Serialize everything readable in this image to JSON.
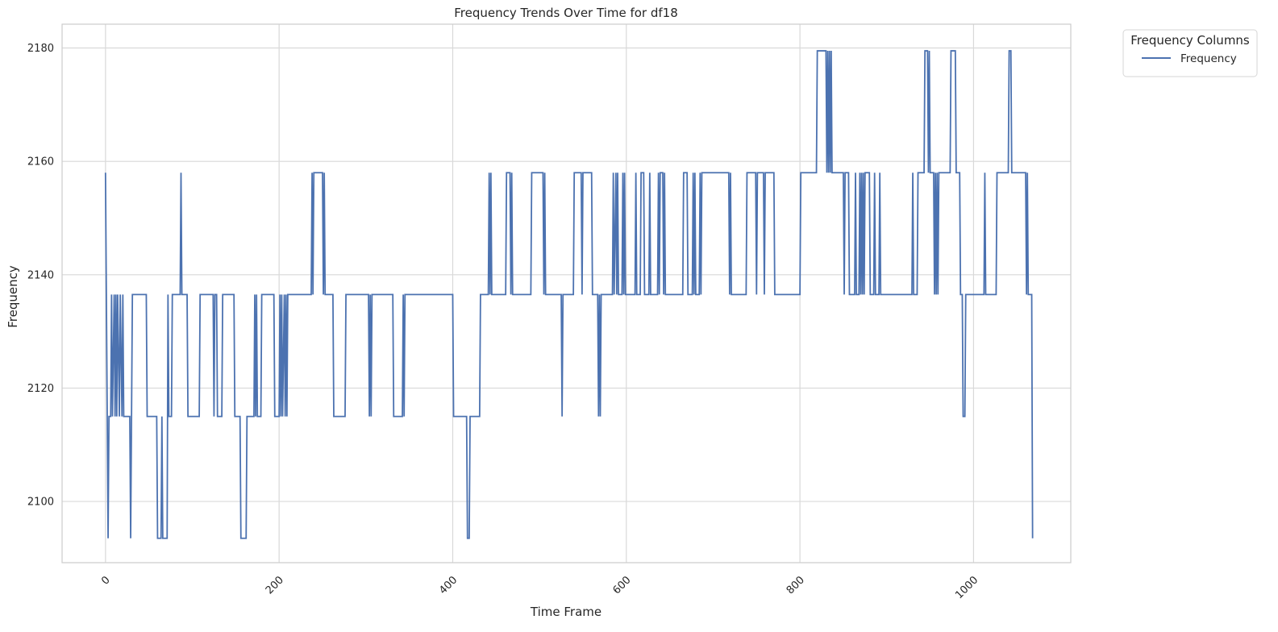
{
  "chart_data": {
    "type": "line",
    "title": "Frequency Trends Over Time for df18",
    "xlabel": "Time Frame",
    "ylabel": "Frequency",
    "xlim": [
      -50,
      1112
    ],
    "ylim": [
      2089.2,
      2184.2
    ],
    "x_ticks": [
      0,
      200,
      400,
      600,
      800,
      1000
    ],
    "y_ticks": [
      2100,
      2120,
      2140,
      2160,
      2180
    ],
    "x_tick_rotation": 45,
    "grid": true,
    "legend": {
      "title": "Frequency Columns",
      "placement": "outside top-right",
      "entries": [
        "Frequency"
      ]
    },
    "series": [
      {
        "name": "Frequency",
        "color": "#4c72b0",
        "points": [
          [
            0,
            2158
          ],
          [
            1,
            2136.5
          ],
          [
            2,
            2115
          ],
          [
            3,
            2093.5
          ],
          [
            4,
            2115
          ],
          [
            6,
            2115
          ],
          [
            7,
            2136.5
          ],
          [
            8,
            2115
          ],
          [
            10,
            2136.5
          ],
          [
            11,
            2115
          ],
          [
            12,
            2136.5
          ],
          [
            13,
            2115
          ],
          [
            14,
            2136.5
          ],
          [
            16,
            2115
          ],
          [
            17,
            2136.5
          ],
          [
            19,
            2115
          ],
          [
            20,
            2136.5
          ],
          [
            21,
            2115
          ],
          [
            28,
            2115
          ],
          [
            29,
            2093.5
          ],
          [
            30,
            2115
          ],
          [
            31,
            2136.5
          ],
          [
            47,
            2136.5
          ],
          [
            48,
            2115
          ],
          [
            59,
            2115
          ],
          [
            60,
            2093.5
          ],
          [
            64,
            2093.5
          ],
          [
            65,
            2115
          ],
          [
            66,
            2093.5
          ],
          [
            71,
            2093.5
          ],
          [
            72,
            2136.5
          ],
          [
            73,
            2115
          ],
          [
            76,
            2115
          ],
          [
            77,
            2136.5
          ],
          [
            86,
            2136.5
          ],
          [
            87,
            2158
          ],
          [
            88,
            2136.5
          ],
          [
            94,
            2136.5
          ],
          [
            95,
            2115
          ],
          [
            108,
            2115
          ],
          [
            109,
            2136.5
          ],
          [
            124,
            2136.5
          ],
          [
            125,
            2115
          ],
          [
            126,
            2136.5
          ],
          [
            128,
            2136.5
          ],
          [
            129,
            2115
          ],
          [
            134,
            2115
          ],
          [
            135,
            2136.5
          ],
          [
            148,
            2136.5
          ],
          [
            149,
            2115
          ],
          [
            155,
            2115
          ],
          [
            156,
            2093.5
          ],
          [
            162,
            2093.5
          ],
          [
            163,
            2115
          ],
          [
            171,
            2115
          ],
          [
            172,
            2136.5
          ],
          [
            173,
            2115
          ],
          [
            174,
            2136.5
          ],
          [
            175,
            2115
          ],
          [
            179,
            2115
          ],
          [
            180,
            2136.5
          ],
          [
            194,
            2136.5
          ],
          [
            195,
            2115
          ],
          [
            200,
            2115
          ],
          [
            201,
            2136.5
          ],
          [
            202,
            2115
          ],
          [
            203,
            2136.5
          ],
          [
            204,
            2115
          ],
          [
            206,
            2136.5
          ],
          [
            207,
            2115
          ],
          [
            208,
            2136.5
          ],
          [
            209,
            2115
          ],
          [
            210,
            2136.5
          ],
          [
            237,
            2136.5
          ],
          [
            238,
            2158
          ],
          [
            239,
            2136.5
          ],
          [
            240,
            2158
          ],
          [
            250,
            2158
          ],
          [
            251,
            2136.5
          ],
          [
            252,
            2158
          ],
          [
            253,
            2136.5
          ],
          [
            262,
            2136.5
          ],
          [
            263,
            2115
          ],
          [
            276,
            2115
          ],
          [
            277,
            2136.5
          ],
          [
            303,
            2136.5
          ],
          [
            304,
            2115
          ],
          [
            305,
            2136.5
          ],
          [
            306,
            2115
          ],
          [
            307,
            2136.5
          ],
          [
            331,
            2136.5
          ],
          [
            332,
            2115
          ],
          [
            342,
            2115
          ],
          [
            343,
            2136.5
          ],
          [
            344,
            2115
          ],
          [
            345,
            2136.5
          ],
          [
            400,
            2136.5
          ],
          [
            401,
            2115
          ],
          [
            416,
            2115
          ],
          [
            417,
            2093.5
          ],
          [
            419,
            2093.5
          ],
          [
            420,
            2115
          ],
          [
            431,
            2115
          ],
          [
            432,
            2136.5
          ],
          [
            441,
            2136.5
          ],
          [
            442,
            2158
          ],
          [
            443,
            2136.5
          ],
          [
            444,
            2158
          ],
          [
            445,
            2136.5
          ],
          [
            461,
            2136.5
          ],
          [
            462,
            2158
          ],
          [
            466,
            2158
          ],
          [
            467,
            2136.5
          ],
          [
            468,
            2158
          ],
          [
            469,
            2136.5
          ],
          [
            490,
            2136.5
          ],
          [
            491,
            2158
          ],
          [
            504,
            2158
          ],
          [
            505,
            2136.5
          ],
          [
            506,
            2158
          ],
          [
            507,
            2136.5
          ],
          [
            525,
            2136.5
          ],
          [
            526,
            2115
          ],
          [
            527,
            2136.5
          ],
          [
            539,
            2136.5
          ],
          [
            540,
            2158
          ],
          [
            548,
            2158
          ],
          [
            549,
            2136.5
          ],
          [
            550,
            2158
          ],
          [
            560,
            2158
          ],
          [
            561,
            2136.5
          ],
          [
            567,
            2136.5
          ],
          [
            568,
            2115
          ],
          [
            569,
            2136.5
          ],
          [
            570,
            2115
          ],
          [
            571,
            2136.5
          ],
          [
            584,
            2136.5
          ],
          [
            585,
            2158
          ],
          [
            586,
            2136.5
          ],
          [
            588,
            2158
          ],
          [
            589,
            2136.5
          ],
          [
            590,
            2158
          ],
          [
            591,
            2136.5
          ],
          [
            595,
            2136.5
          ],
          [
            596,
            2158
          ],
          [
            597,
            2136.5
          ],
          [
            598,
            2158
          ],
          [
            599,
            2136.5
          ],
          [
            610,
            2136.5
          ],
          [
            611,
            2158
          ],
          [
            612,
            2136.5
          ],
          [
            616,
            2136.5
          ],
          [
            617,
            2158
          ],
          [
            620,
            2158
          ],
          [
            621,
            2136.5
          ],
          [
            626,
            2136.5
          ],
          [
            627,
            2158
          ],
          [
            628,
            2136.5
          ],
          [
            636,
            2136.5
          ],
          [
            637,
            2158
          ],
          [
            638,
            2136.5
          ],
          [
            639,
            2158
          ],
          [
            642,
            2158
          ],
          [
            643,
            2136.5
          ],
          [
            644,
            2158
          ],
          [
            645,
            2136.5
          ],
          [
            665,
            2136.5
          ],
          [
            666,
            2158
          ],
          [
            670,
            2158
          ],
          [
            671,
            2136.5
          ],
          [
            676,
            2136.5
          ],
          [
            677,
            2158
          ],
          [
            678,
            2136.5
          ],
          [
            679,
            2158
          ],
          [
            680,
            2136.5
          ],
          [
            684,
            2136.5
          ],
          [
            685,
            2158
          ],
          [
            686,
            2136.5
          ],
          [
            687,
            2158
          ],
          [
            718,
            2158
          ],
          [
            719,
            2136.5
          ],
          [
            720,
            2158
          ],
          [
            721,
            2136.5
          ],
          [
            738,
            2136.5
          ],
          [
            739,
            2158
          ],
          [
            749,
            2158
          ],
          [
            750,
            2136.5
          ],
          [
            751,
            2158
          ],
          [
            758,
            2158
          ],
          [
            759,
            2136.5
          ],
          [
            760,
            2158
          ],
          [
            770,
            2158
          ],
          [
            771,
            2136.5
          ],
          [
            800,
            2136.5
          ],
          [
            801,
            2158
          ],
          [
            819,
            2158
          ],
          [
            820,
            2179.5
          ],
          [
            830,
            2179.5
          ],
          [
            831,
            2158
          ],
          [
            832,
            2179.5
          ],
          [
            833,
            2158
          ],
          [
            834,
            2179.5
          ],
          [
            835,
            2158
          ],
          [
            836,
            2179.5
          ],
          [
            837,
            2158
          ],
          [
            850,
            2158
          ],
          [
            851,
            2136.5
          ],
          [
            852,
            2158
          ],
          [
            856,
            2158
          ],
          [
            857,
            2136.5
          ],
          [
            863,
            2136.5
          ],
          [
            864,
            2158
          ],
          [
            865,
            2136.5
          ],
          [
            868,
            2136.5
          ],
          [
            869,
            2158
          ],
          [
            870,
            2136.5
          ],
          [
            871,
            2158
          ],
          [
            872,
            2136.5
          ],
          [
            873,
            2158
          ],
          [
            874,
            2136.5
          ],
          [
            875,
            2158
          ],
          [
            880,
            2158
          ],
          [
            881,
            2136.5
          ],
          [
            885,
            2136.5
          ],
          [
            886,
            2158
          ],
          [
            887,
            2136.5
          ],
          [
            891,
            2136.5
          ],
          [
            892,
            2158
          ],
          [
            893,
            2136.5
          ],
          [
            929,
            2136.5
          ],
          [
            930,
            2158
          ],
          [
            931,
            2136.5
          ],
          [
            935,
            2136.5
          ],
          [
            936,
            2158
          ],
          [
            943,
            2158
          ],
          [
            944,
            2179.5
          ],
          [
            947,
            2179.5
          ],
          [
            948,
            2158
          ],
          [
            949,
            2179.5
          ],
          [
            950,
            2158
          ],
          [
            954,
            2158
          ],
          [
            955,
            2136.5
          ],
          [
            956,
            2158
          ],
          [
            957,
            2136.5
          ],
          [
            958,
            2158
          ],
          [
            959,
            2136.5
          ],
          [
            960,
            2158
          ],
          [
            973,
            2158
          ],
          [
            974,
            2179.5
          ],
          [
            979,
            2179.5
          ],
          [
            980,
            2158
          ],
          [
            984,
            2158
          ],
          [
            985,
            2136.5
          ],
          [
            987,
            2136.5
          ],
          [
            988,
            2115
          ],
          [
            990,
            2115
          ],
          [
            991,
            2136.5
          ],
          [
            1012,
            2136.5
          ],
          [
            1013,
            2158
          ],
          [
            1014,
            2136.5
          ],
          [
            1026,
            2136.5
          ],
          [
            1027,
            2158
          ],
          [
            1040,
            2158
          ],
          [
            1041,
            2179.5
          ],
          [
            1043,
            2179.5
          ],
          [
            1044,
            2158
          ],
          [
            1060,
            2158
          ],
          [
            1061,
            2136.5
          ],
          [
            1062,
            2158
          ],
          [
            1063,
            2136.5
          ],
          [
            1067,
            2136.5
          ],
          [
            1068,
            2093.5
          ]
        ]
      }
    ]
  }
}
